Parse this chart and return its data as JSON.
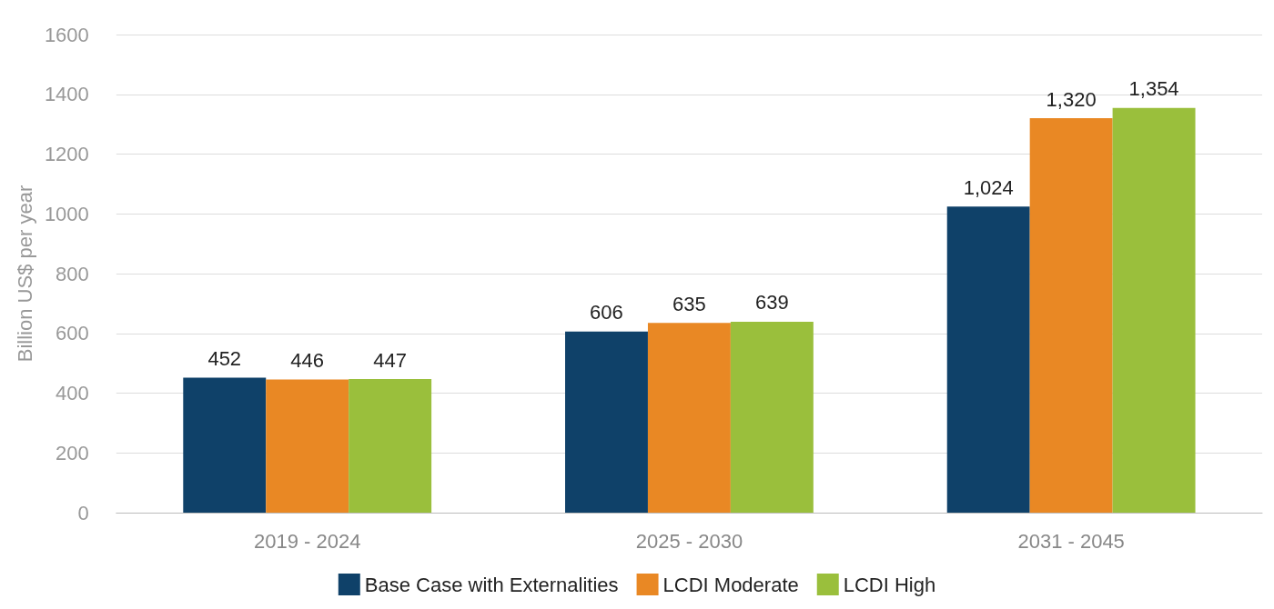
{
  "chart_data": {
    "type": "bar",
    "ylabel": "Billion US$ per year",
    "categories": [
      "2019 - 2024",
      "2025 - 2030",
      "2031 - 2045"
    ],
    "series": [
      {
        "name": "Base Case with Externalities",
        "color": "#0f4169",
        "values": [
          452,
          606,
          1024
        ],
        "value_labels": [
          "452",
          "606",
          "1,024"
        ]
      },
      {
        "name": "LCDI Moderate",
        "color": "#e98824",
        "values": [
          446,
          635,
          1320
        ],
        "value_labels": [
          "446",
          "635",
          "1,320"
        ]
      },
      {
        "name": "LCDI High",
        "color": "#9abf3c",
        "values": [
          447,
          639,
          1354
        ],
        "value_labels": [
          "447",
          "639",
          "1,354"
        ]
      }
    ],
    "ylim": [
      0,
      1600
    ],
    "yticks": [
      0,
      200,
      400,
      600,
      800,
      1000,
      1200,
      1400,
      1600
    ],
    "grid": "y",
    "legend": "bottom"
  }
}
